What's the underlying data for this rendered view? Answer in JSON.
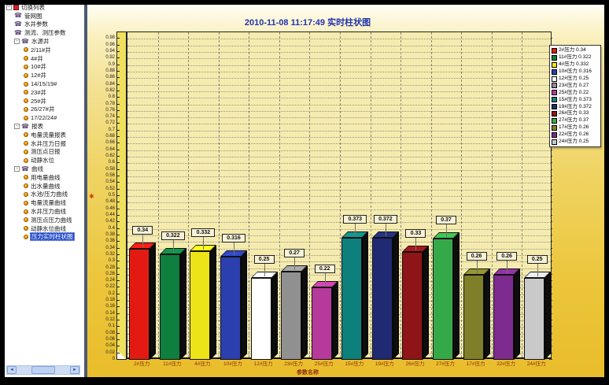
{
  "sidebar": {
    "scrollbar": {
      "left_arrow": "◄",
      "right_arrow": "►"
    },
    "items": [
      {
        "label": "切换列表",
        "icon": "flag",
        "level": 0,
        "expander": true
      },
      {
        "label": "管网图",
        "icon": "phone",
        "level": 1
      },
      {
        "label": "水井参数",
        "icon": "phone",
        "level": 1
      },
      {
        "label": "测流、测压参数",
        "icon": "phone",
        "level": 1
      },
      {
        "label": "水源井",
        "icon": "phone",
        "level": 1,
        "expander": true
      },
      {
        "label": "2/11#井",
        "icon": "ball",
        "level": 2
      },
      {
        "label": "4#井",
        "icon": "ball",
        "level": 2
      },
      {
        "label": "10#井",
        "icon": "ball",
        "level": 2
      },
      {
        "label": "12#井",
        "icon": "ball",
        "level": 2
      },
      {
        "label": "14/15/19#",
        "icon": "ball",
        "level": 2
      },
      {
        "label": "23#井",
        "icon": "ball",
        "level": 2
      },
      {
        "label": "25#井",
        "icon": "ball",
        "level": 2
      },
      {
        "label": "26/27#井",
        "icon": "ball",
        "level": 2
      },
      {
        "label": "17/22/24#",
        "icon": "ball",
        "level": 2
      },
      {
        "label": "报表",
        "icon": "phone",
        "level": 1,
        "expander": true
      },
      {
        "label": "电量流量报表",
        "icon": "ball",
        "level": 2
      },
      {
        "label": "水井压力日报",
        "icon": "ball",
        "level": 2
      },
      {
        "label": "测压点日报",
        "icon": "ball",
        "level": 2
      },
      {
        "label": "动静水位",
        "icon": "ball",
        "level": 2
      },
      {
        "label": "曲线",
        "icon": "phone",
        "level": 1,
        "expander": true
      },
      {
        "label": "用电量曲线",
        "icon": "ball",
        "level": 2
      },
      {
        "label": "出水量曲线",
        "icon": "ball",
        "level": 2
      },
      {
        "label": "水池/压力曲线",
        "icon": "ball",
        "level": 2
      },
      {
        "label": "电量流量曲线",
        "icon": "ball",
        "level": 2
      },
      {
        "label": "水井压力曲线",
        "icon": "ball",
        "level": 2
      },
      {
        "label": "测压点压力曲线",
        "icon": "ball",
        "level": 2
      },
      {
        "label": "动静水位曲线",
        "icon": "ball",
        "level": 2
      },
      {
        "label": "压力实时柱状图",
        "icon": "ball",
        "level": 2,
        "selected": true
      }
    ]
  },
  "chart": {
    "axis_marker_glyph": "✱",
    "theme": {
      "title_color": "#2233aa",
      "xlabel_color": "#8b2e10",
      "plot_bg": "#f5ebae",
      "wall_color": "#efe15e",
      "panel_gold": "#ecc53a",
      "selection_blue": "#2a50c8"
    }
  },
  "chart_data": {
    "type": "bar",
    "title": "2010-11-08 11:17:49 实时柱状图",
    "xlabel": "参数名称",
    "ylabel": "",
    "categories": [
      "2#压力",
      "11#压力",
      "4#压力",
      "10#压力",
      "12#压力",
      "23#压力",
      "25#压力",
      "15#压力",
      "19#压力",
      "26#压力",
      "27#压力",
      "17#压力",
      "22#压力",
      "24#压力"
    ],
    "values": [
      0.34,
      0.322,
      0.332,
      0.316,
      0.25,
      0.27,
      0.22,
      0.373,
      0.372,
      0.33,
      0.37,
      0.26,
      0.26,
      0.25
    ],
    "colors": [
      "#e31a12",
      "#0f7f3f",
      "#ece319",
      "#2b3fae",
      "#ffffff",
      "#909090",
      "#b53a9b",
      "#0e807c",
      "#1f2a72",
      "#8f1418",
      "#35a94a",
      "#7f7f2a",
      "#7d2b8f",
      "#c9c9c9"
    ],
    "ylim": [
      0,
      1.0
    ],
    "ytick_step": 0.02,
    "grid": "dotted",
    "legend_position": "right",
    "bar_value_labels": true
  }
}
